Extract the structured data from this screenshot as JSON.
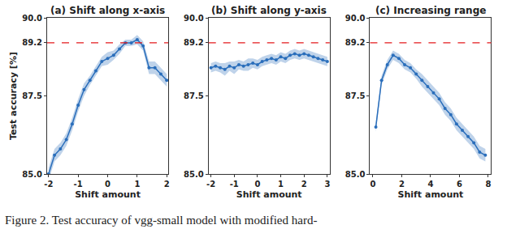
{
  "chart_data": [
    {
      "type": "line",
      "title": "(a) Shift along x-axis",
      "x_label": "Shift amount",
      "y_label": "Test accuracy [%]",
      "x": [
        -2.0,
        -1.8,
        -1.6,
        -1.4,
        -1.2,
        -1.0,
        -0.8,
        -0.6,
        -0.4,
        -0.2,
        0.0,
        0.2,
        0.4,
        0.6,
        0.8,
        1.0,
        1.2,
        1.4,
        1.6,
        1.8,
        2.0
      ],
      "series": [
        {
          "color": "#2a6ebb",
          "marker": "circle",
          "values": [
            85.0,
            85.6,
            85.8,
            86.1,
            86.6,
            87.2,
            87.7,
            88.0,
            88.3,
            88.6,
            88.7,
            88.8,
            89.0,
            89.2,
            89.2,
            89.3,
            89.1,
            88.4,
            88.4,
            88.2,
            88.0
          ],
          "error": [
            0.2,
            0.2,
            0.2,
            0.2,
            0.2,
            0.2,
            0.2,
            0.15,
            0.15,
            0.15,
            0.2,
            0.15,
            0.15,
            0.1,
            0.1,
            0.15,
            0.15,
            0.2,
            0.2,
            0.2,
            0.2
          ]
        }
      ],
      "hline": {
        "value": 89.2,
        "color": "#e41a1c",
        "line_style": "dash"
      },
      "xlim": [
        -2.05,
        2.05
      ],
      "xticks": [
        -2,
        -1,
        0,
        1,
        2
      ],
      "ylim": [
        85,
        90
      ],
      "yticks": [
        {
          "value": 85,
          "label": "85.0"
        },
        {
          "value": 87.5,
          "label": "87.5"
        },
        {
          "value": 89.2,
          "label": "89.2"
        },
        {
          "value": 90,
          "label": "90.0"
        }
      ],
      "grid": false
    },
    {
      "type": "line",
      "title": "(b) Shift along y-axis",
      "x_label": "Shift amount",
      "x": [
        -2.0,
        -1.8,
        -1.6,
        -1.4,
        -1.2,
        -1.0,
        -0.8,
        -0.6,
        -0.4,
        -0.2,
        0.0,
        0.2,
        0.4,
        0.6,
        0.8,
        1.0,
        1.2,
        1.4,
        1.6,
        1.8,
        2.0,
        2.2,
        2.4,
        2.6,
        2.8,
        3.0
      ],
      "series": [
        {
          "color": "#2a6ebb",
          "marker": "circle",
          "values": [
            88.4,
            88.45,
            88.4,
            88.35,
            88.45,
            88.4,
            88.5,
            88.45,
            88.5,
            88.55,
            88.5,
            88.6,
            88.65,
            88.7,
            88.65,
            88.75,
            88.7,
            88.8,
            88.85,
            88.8,
            88.85,
            88.8,
            88.75,
            88.7,
            88.65,
            88.6
          ],
          "error": [
            0.15,
            0.15,
            0.15,
            0.2,
            0.15,
            0.2,
            0.15,
            0.15,
            0.2,
            0.15,
            0.15,
            0.15,
            0.15,
            0.15,
            0.15,
            0.15,
            0.15,
            0.15,
            0.15,
            0.15,
            0.15,
            0.15,
            0.15,
            0.15,
            0.15,
            0.15
          ]
        }
      ],
      "hline": {
        "value": 89.2,
        "color": "#e41a1c",
        "line_style": "dash"
      },
      "xlim": [
        -2.1,
        3.1
      ],
      "xticks": [
        -2,
        -1,
        0,
        1,
        2,
        3
      ],
      "ylim": [
        85,
        90
      ],
      "yticks": [
        {
          "value": 85,
          "label": "85.0"
        },
        {
          "value": 87.5,
          "label": "87.5"
        },
        {
          "value": 89.2,
          "label": "89.2"
        },
        {
          "value": 90,
          "label": "90.0"
        }
      ],
      "grid": false
    },
    {
      "type": "line",
      "title": "(c) Increasing range",
      "x_label": "Shift amount",
      "x": [
        0.2,
        0.6,
        1.0,
        1.4,
        1.8,
        2.2,
        2.6,
        3.0,
        3.4,
        3.8,
        4.2,
        4.6,
        5.0,
        5.4,
        5.8,
        6.2,
        6.6,
        7.0,
        7.4,
        7.8
      ],
      "series": [
        {
          "color": "#2a6ebb",
          "marker": "circle",
          "values": [
            86.5,
            88.0,
            88.5,
            88.8,
            88.7,
            88.5,
            88.4,
            88.2,
            88.0,
            87.8,
            87.6,
            87.4,
            87.1,
            86.9,
            86.6,
            86.4,
            86.2,
            86.0,
            85.7,
            85.6
          ],
          "error": [
            0.15,
            0.15,
            0.15,
            0.15,
            0.15,
            0.15,
            0.15,
            0.15,
            0.2,
            0.2,
            0.2,
            0.2,
            0.2,
            0.2,
            0.2,
            0.2,
            0.2,
            0.2,
            0.2,
            0.2
          ]
        }
      ],
      "hline": {
        "value": 89.2,
        "color": "#e41a1c",
        "line_style": "dash"
      },
      "xlim": [
        -0.2,
        8.2
      ],
      "xticks": [
        0,
        2,
        4,
        6,
        8
      ],
      "ylim": [
        85,
        90
      ],
      "yticks": [
        {
          "value": 85,
          "label": "85.0"
        },
        {
          "value": 87.5,
          "label": "87.5"
        },
        {
          "value": 89.2,
          "label": "89.2"
        },
        {
          "value": 90,
          "label": "90.0"
        }
      ],
      "grid": false
    }
  ],
  "caption": "Figure 2. Test accuracy of vgg-small model with modified hard-"
}
